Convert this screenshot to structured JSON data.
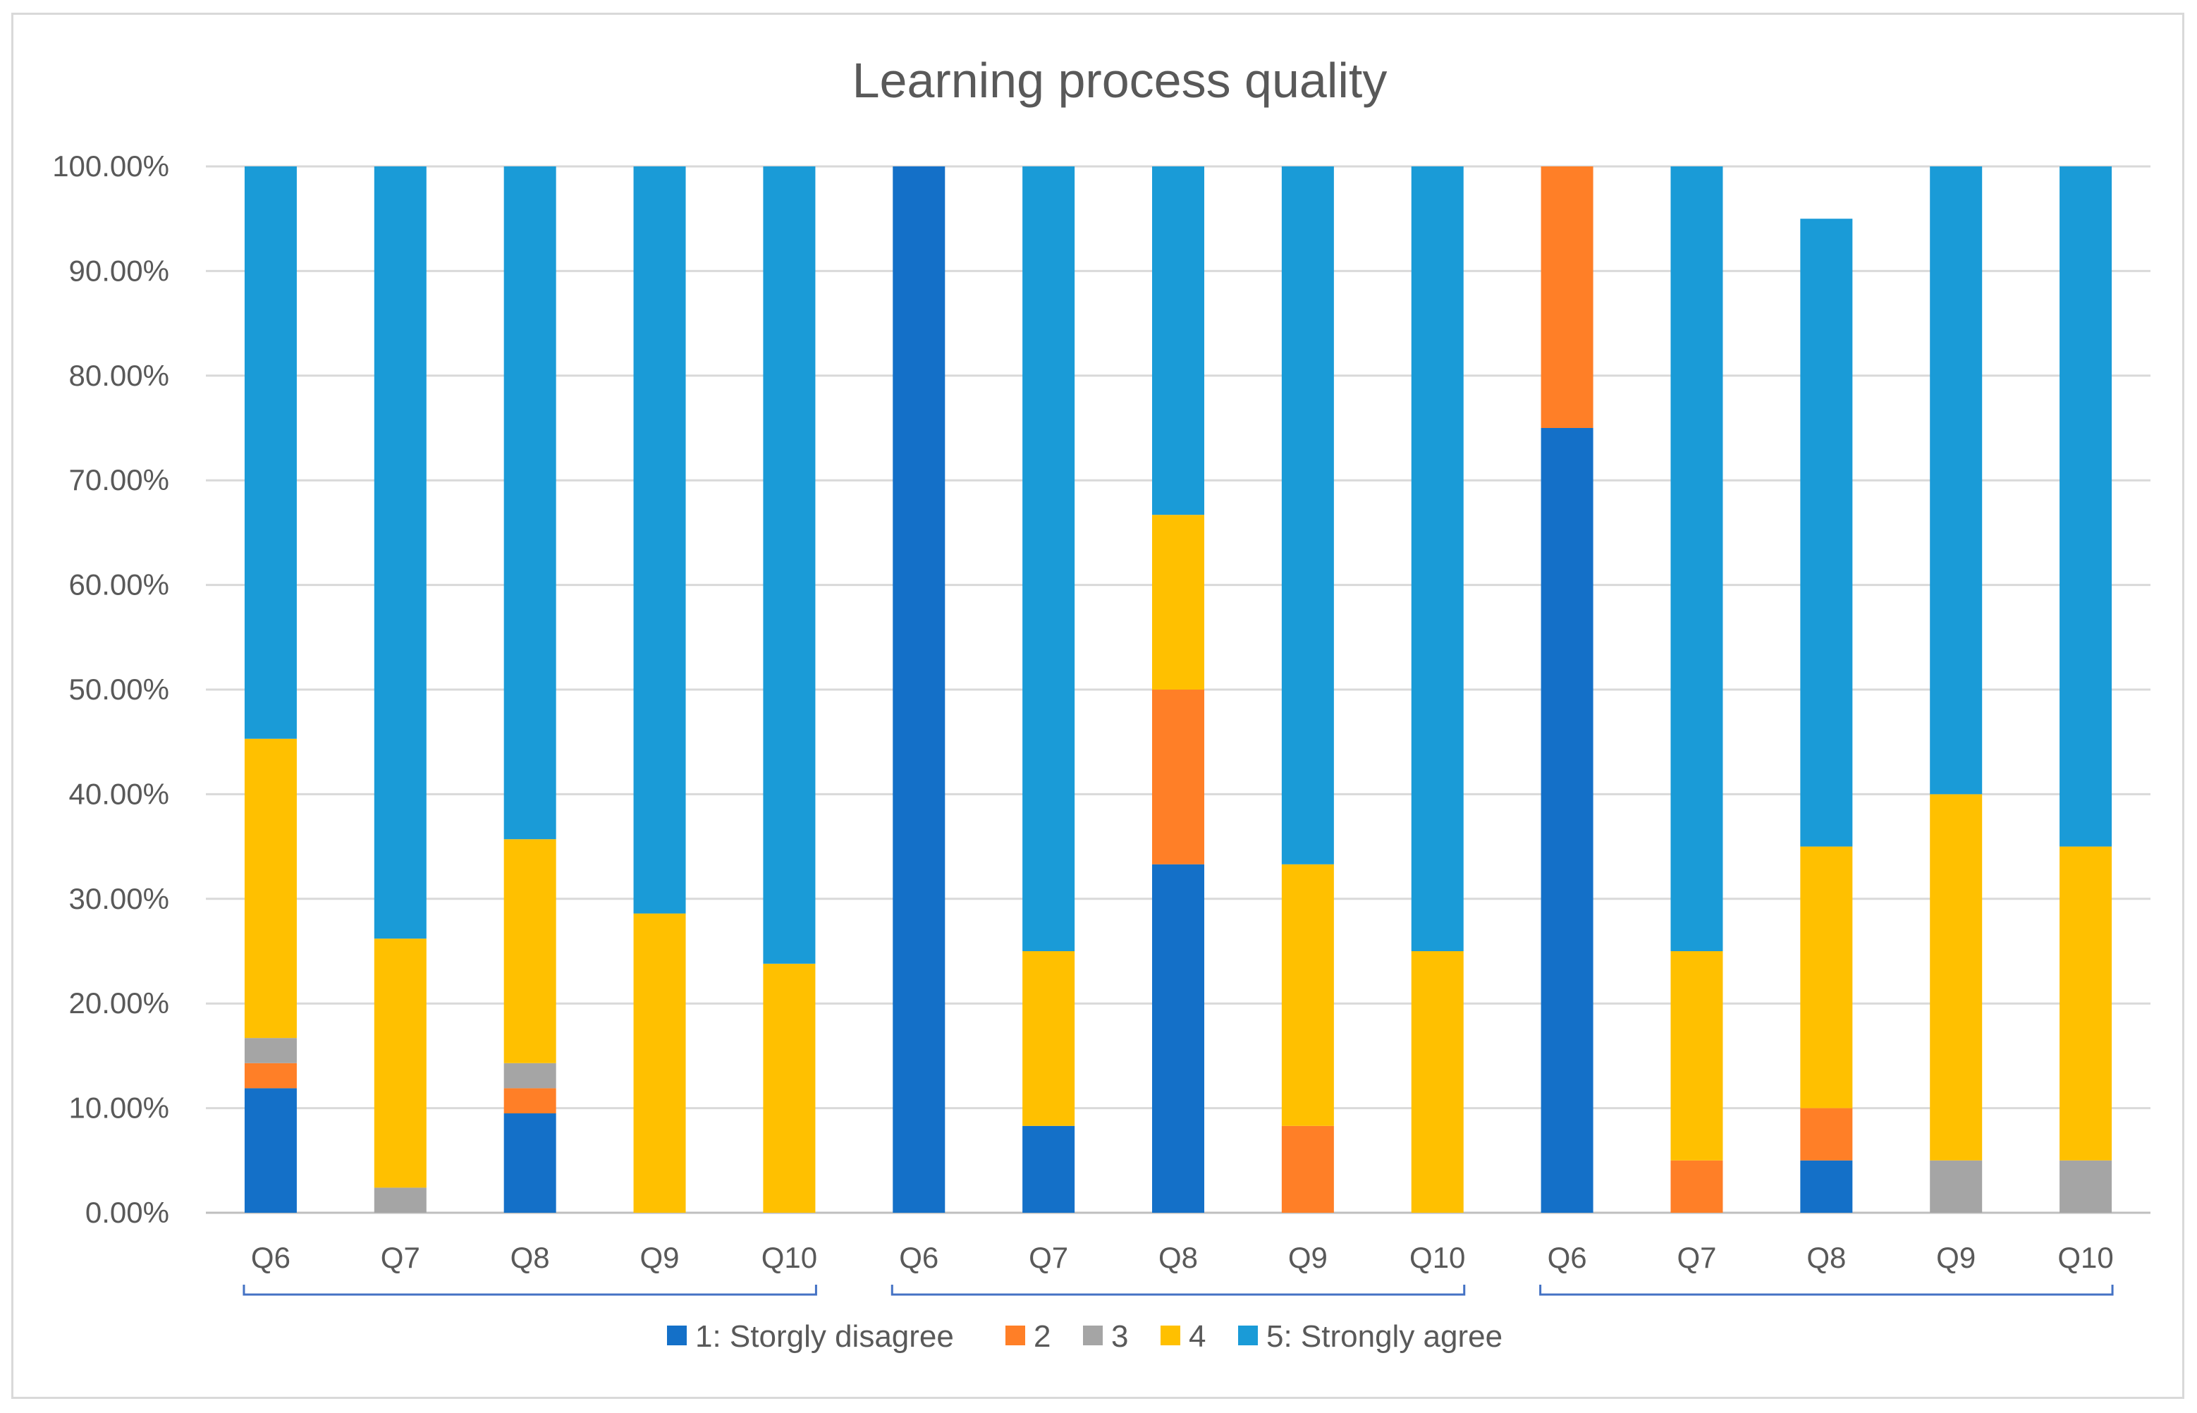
{
  "chart_data": {
    "type": "bar",
    "stacked": true,
    "title": "Learning process quality",
    "xlabel": "",
    "ylabel": "",
    "ylim": [
      0,
      1
    ],
    "yticks": [
      "0.00%",
      "10.00%",
      "20.00%",
      "30.00%",
      "40.00%",
      "50.00%",
      "60.00%",
      "70.00%",
      "80.00%",
      "90.00%",
      "100.00%"
    ],
    "categories": [
      "Q6",
      "Q7",
      "Q8",
      "Q9",
      "Q10",
      "Q6",
      "Q7",
      "Q8",
      "Q9",
      "Q10",
      "Q6",
      "Q7",
      "Q8",
      "Q9",
      "Q10"
    ],
    "groups": [
      {
        "start": 0,
        "end": 4
      },
      {
        "start": 5,
        "end": 9
      },
      {
        "start": 10,
        "end": 14
      }
    ],
    "series": [
      {
        "name": "1: Storgly disagree",
        "color": "#1470C8",
        "values": [
          0.119,
          0,
          0.095,
          0,
          0,
          1.0,
          0.083,
          0.333,
          0,
          0,
          0.75,
          0,
          0.05,
          0,
          0
        ]
      },
      {
        "name": "2",
        "color": "#FF7F27",
        "values": [
          0.024,
          0,
          0.024,
          0,
          0,
          0,
          0,
          0.167,
          0.083,
          0,
          0.25,
          0.05,
          0.05,
          0,
          0
        ]
      },
      {
        "name": "3",
        "color": "#A5A5A5",
        "values": [
          0.024,
          0.024,
          0.024,
          0,
          0,
          0,
          0,
          0,
          0,
          0,
          0,
          0,
          0,
          0.05,
          0.05
        ]
      },
      {
        "name": "4",
        "color": "#FFC000",
        "values": [
          0.286,
          0.238,
          0.214,
          0.286,
          0.238,
          0,
          0.167,
          0.167,
          0.25,
          0.25,
          0,
          0.2,
          0.25,
          0.35,
          0.3
        ]
      },
      {
        "name": "5: Strongly agree",
        "color": "#1A9BD7",
        "values": [
          0.547,
          0.738,
          0.643,
          0.714,
          0.762,
          0,
          0.75,
          0.333,
          0.667,
          0.75,
          0,
          0.75,
          0.6,
          0.6,
          0.65
        ]
      }
    ],
    "legend_position": "bottom",
    "grid": true
  }
}
